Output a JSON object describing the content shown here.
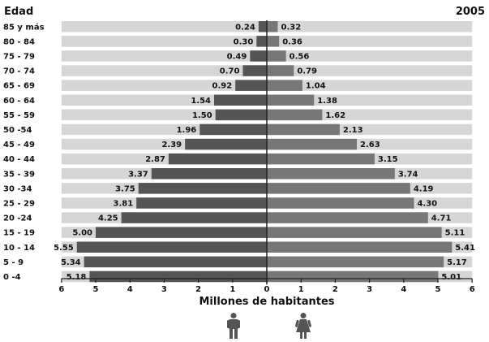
{
  "chart_data": {
    "type": "bar",
    "subtype": "population-pyramid",
    "y_title": "Edad",
    "year": "2005",
    "xlabel": "Millones de habitantes",
    "categories": [
      "85 y más",
      "80 - 84",
      "75 - 79",
      "70 - 74",
      "65 - 69",
      "60 - 64",
      "55 - 59",
      "50 -54",
      "45 - 49",
      "40 - 44",
      "35 - 39",
      "30 -34",
      "25 - 29",
      "20 -24",
      "15 - 19",
      "10 - 14",
      "5 - 9",
      "0 -4"
    ],
    "series": [
      {
        "name": "Hombres",
        "icon": "man-icon",
        "color": "#555555",
        "values": [
          0.24,
          0.3,
          0.49,
          0.7,
          0.92,
          1.54,
          1.5,
          1.96,
          2.39,
          2.87,
          3.37,
          3.75,
          3.81,
          4.25,
          5.0,
          5.55,
          5.34,
          5.18
        ],
        "value_labels": [
          "0.24",
          "0.30",
          "0.49",
          "0.70",
          "0.92",
          "1.54",
          "1.50",
          "1.96",
          "2.39",
          "2.87",
          "3.37",
          "3.75",
          "3.81",
          "4.25",
          "5.00",
          "5.55",
          "5.34",
          "5.18"
        ]
      },
      {
        "name": "Mujeres",
        "icon": "woman-icon",
        "color": "#777777",
        "values": [
          0.32,
          0.36,
          0.56,
          0.79,
          1.04,
          1.38,
          1.62,
          2.13,
          2.63,
          3.15,
          3.74,
          4.19,
          4.3,
          4.71,
          5.11,
          5.41,
          5.17,
          5.01
        ],
        "value_labels": [
          "0.32",
          "0.36",
          "0.56",
          "0.79",
          "1.04",
          "1.38",
          "1.62",
          "2.13",
          "2.63",
          "3.15",
          "3.74",
          "4.19",
          "4.30",
          "4.71",
          "5.11",
          "5.41",
          "5.17",
          "5.01"
        ]
      }
    ],
    "xlim": [
      -6,
      6
    ],
    "x_ticks": [
      -6,
      -5,
      -4,
      -3,
      -2,
      -1,
      0,
      1,
      2,
      3,
      4,
      5,
      6
    ],
    "x_tick_labels": [
      "6",
      "5",
      "4",
      "3",
      "2",
      "1",
      "0",
      "1",
      "2",
      "3",
      "4",
      "5",
      "6"
    ],
    "row_background": "#d6d6d6",
    "axis_color": "#222222"
  }
}
